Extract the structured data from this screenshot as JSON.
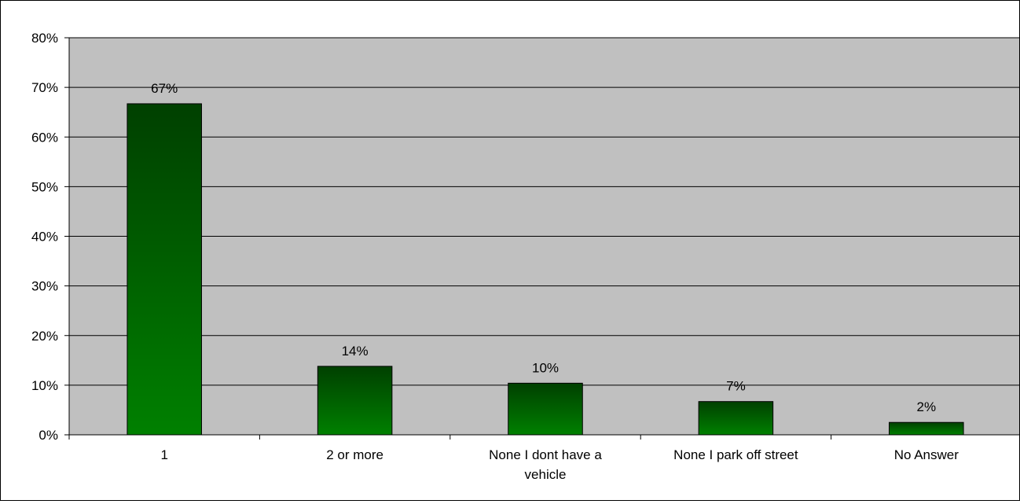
{
  "chart_data": {
    "type": "bar",
    "categories": [
      "1",
      "2 or more",
      "None I dont have a vehicle",
      "None I park off street",
      "No Answer"
    ],
    "category_label_lines": [
      [
        "1"
      ],
      [
        "2 or more"
      ],
      [
        "None I dont have a",
        "vehicle"
      ],
      [
        "None I park off street"
      ],
      [
        "No Answer"
      ]
    ],
    "values": [
      0.667,
      0.138,
      0.104,
      0.067,
      0.025
    ],
    "data_labels": [
      "67%",
      "14%",
      "10%",
      "7%",
      "2%"
    ],
    "ylim": [
      0,
      0.8
    ],
    "yticks": [
      0,
      0.1,
      0.2,
      0.3,
      0.4,
      0.5,
      0.6,
      0.7,
      0.8
    ],
    "ytick_labels": [
      "0%",
      "10%",
      "20%",
      "30%",
      "40%",
      "50%",
      "60%",
      "70%",
      "80%"
    ],
    "title": "",
    "xlabel": "",
    "ylabel": "",
    "grid": true,
    "legend": "none",
    "colors": {
      "plot_background": "#c0c0c0",
      "bar_top": "#004000",
      "bar_bottom": "#008000",
      "gridline": "#000000"
    }
  }
}
